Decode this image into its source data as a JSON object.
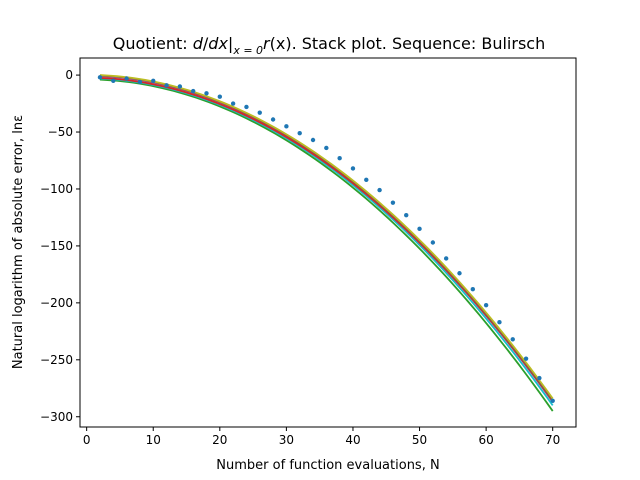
{
  "chart_data": {
    "type": "line",
    "title": {
      "prefix": "Quotient: ",
      "math_d": "d",
      "math_slash": "/",
      "math_dx": "dx",
      "math_bar": "|",
      "math_sub": "x = 0",
      "math_r": "r",
      "math_arg": "(x)",
      "suffix": ". Stack plot. Sequence: Bulirsch"
    },
    "xlabel": "Number of function evaluations, N",
    "ylabel": "Natural logarithm of absolute error, lnε",
    "xlim": [
      -1,
      73.5
    ],
    "ylim": [
      -309,
      15
    ],
    "xticks": [
      0,
      10,
      20,
      30,
      40,
      50,
      60,
      70
    ],
    "yticks": [
      0,
      -50,
      -100,
      -150,
      -200,
      -250,
      -300
    ],
    "grid": false,
    "points": {
      "color": "#1f77b4",
      "x": [
        2,
        4,
        6,
        8,
        10,
        12,
        14,
        16,
        18,
        20,
        22,
        24,
        26,
        28,
        30,
        32,
        34,
        36,
        38,
        40,
        42,
        44,
        46,
        48,
        50,
        52,
        54,
        56,
        58,
        60,
        62,
        64,
        66,
        68,
        70
      ],
      "y": [
        -2,
        -5,
        -3,
        -6,
        -5,
        -9,
        -10,
        -14,
        -16,
        -19,
        -25,
        -28,
        -33,
        -39,
        -45,
        -51,
        -57,
        -64,
        -73,
        -82,
        -92,
        -101,
        -112,
        -123,
        -135,
        -147,
        -161,
        -174,
        -188,
        -202,
        -217,
        -232,
        -249,
        -266,
        -286
      ]
    },
    "series": [
      {
        "color": "#2ca02c",
        "x": [
          2,
          70
        ],
        "y": [
          -4,
          -295
        ]
      },
      {
        "color": "#17becf",
        "x": [
          2,
          70
        ],
        "y": [
          -3,
          -290
        ]
      },
      {
        "color": "#9467bd",
        "x": [
          2,
          70
        ],
        "y": [
          -1,
          -287
        ]
      },
      {
        "color": "#d62728",
        "x": [
          2,
          70
        ],
        "y": [
          -2.5,
          -286.5
        ]
      },
      {
        "color": "#8c564b",
        "x": [
          2,
          70
        ],
        "y": [
          -0.5,
          -286
        ]
      },
      {
        "color": "#bcbd22",
        "x": [
          2,
          70
        ],
        "y": [
          0,
          -284
        ]
      }
    ]
  }
}
